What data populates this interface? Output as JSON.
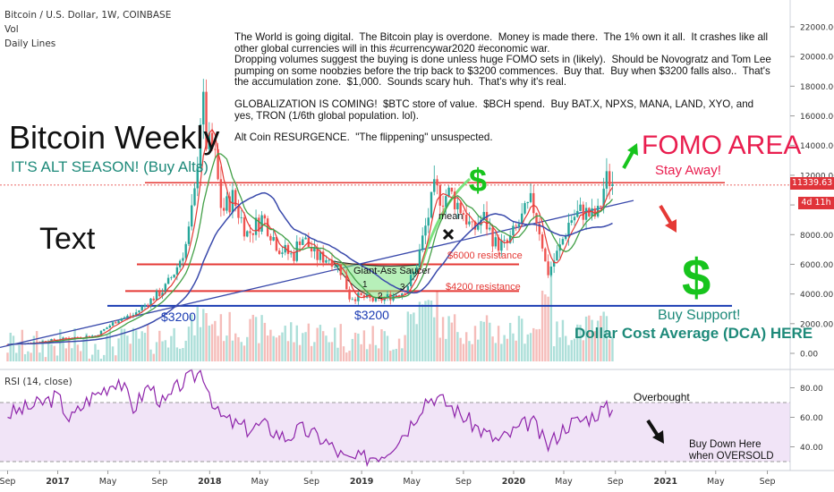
{
  "header": {
    "symbol": "Bitcoin / U.S. Dollar, 1W, COINBASE",
    "vol_label": "Vol",
    "daily_lines_label": "Daily Lines",
    "rsi_label": "RSI (14, close)"
  },
  "annotations": {
    "note_lines": [
      "The World is going digital.  The Bitcoin play is overdone.  Money is made there.  The 1% own it all.  It crashes like all other global currencies will in this #currencywar2020 #economic war.",
      "Dropping volumes suggest the buying is done unless huge FOMO sets in (likely).  Should be Novogratz and Tom Lee pumping on some noobzies before the trip back to $3200 commences.  Buy that.  Buy when $3200 falls also..  That's the accumulation zone.  $1,000.  Sounds scary huh.  That's why it's real.",
      "",
      "GLOBALIZATION IS COMING!  $BTC store of value.  $BCH spend.  Buy BAT.X, NPXS, MANA, LAND, XYO, and yes, TRON (1/6th global population. lol).",
      "",
      "Alt Coin RESURGENCE.  \"The flippening\" unsuspected."
    ],
    "bitcoin_weekly": "Bitcoin Weekly",
    "alt_season": "IT'S ALT SEASON! (Buy Alts)",
    "text_label": "Text",
    "fomo_area": "FOMO AREA",
    "stay_away": "Stay Away!",
    "buy_support": "Buy Support!",
    "dca": "Dollar Cost Average (DCA) HERE",
    "resistance_6000": "$6000 resistance",
    "resistance_4200": "$4200 resistance",
    "support_3200_left": "$3200",
    "support_3200_mid": "$3200",
    "giant_saucer": "Giant-Ass Saucer",
    "mean": "mean",
    "saucer_numbers": [
      "1",
      "2",
      "3"
    ],
    "dollar_sign": "$",
    "overbought": "Overbought",
    "buy_down": "Buy Down Here when OVERSOLD",
    "price_tag": "11339.63",
    "countdown_tag": "4d 11h",
    "colors": {
      "candle_up": "#26a69a",
      "candle_down": "#ef5350",
      "resistance": "#e53935",
      "support": "#1a3bb3",
      "fomo": "#e91e4f",
      "dca": "#1e8a7a",
      "dollar": "#17c41d",
      "rsi": "#8e24aa"
    }
  },
  "chart_data": [
    {
      "type": "candlestick",
      "interval": "weekly",
      "y_axis_ticks": [
        0,
        2000,
        4000,
        6000,
        8000,
        10000,
        12000,
        14000,
        16000,
        18000,
        20000,
        22000
      ],
      "x_axis_ticks": [
        "Sep",
        "2017",
        "May",
        "Sep",
        "2018",
        "May",
        "Sep",
        "2019",
        "May",
        "Sep",
        "2020",
        "May",
        "Sep",
        "2021",
        "May",
        "Sep"
      ],
      "last_price": 11339.63,
      "horizontal_lines": [
        {
          "label": "$6000 resistance",
          "value": 6000
        },
        {
          "label": "$4200 resistance",
          "value": 4200
        },
        {
          "label": "$3200",
          "value": 3200
        },
        {
          "label": "",
          "value": 11500
        }
      ],
      "price_points": [
        {
          "t": 2016.67,
          "v": 600
        },
        {
          "t": 2016.85,
          "v": 740
        },
        {
          "t": 2017.0,
          "v": 960
        },
        {
          "t": 2017.1,
          "v": 1050
        },
        {
          "t": 2017.25,
          "v": 1200
        },
        {
          "t": 2017.4,
          "v": 2300
        },
        {
          "t": 2017.5,
          "v": 2600
        },
        {
          "t": 2017.6,
          "v": 3500
        },
        {
          "t": 2017.7,
          "v": 4300
        },
        {
          "t": 2017.78,
          "v": 5700
        },
        {
          "t": 2017.85,
          "v": 7500
        },
        {
          "t": 2017.9,
          "v": 10500
        },
        {
          "t": 2017.95,
          "v": 17500
        },
        {
          "t": 2017.98,
          "v": 14000
        },
        {
          "t": 2018.03,
          "v": 13500
        },
        {
          "t": 2018.08,
          "v": 9500
        },
        {
          "t": 2018.15,
          "v": 10500
        },
        {
          "t": 2018.25,
          "v": 8000
        },
        {
          "t": 2018.35,
          "v": 9200
        },
        {
          "t": 2018.45,
          "v": 7200
        },
        {
          "t": 2018.55,
          "v": 6500
        },
        {
          "t": 2018.6,
          "v": 8000
        },
        {
          "t": 2018.7,
          "v": 6500
        },
        {
          "t": 2018.8,
          "v": 6400
        },
        {
          "t": 2018.87,
          "v": 5500
        },
        {
          "t": 2018.92,
          "v": 3800
        },
        {
          "t": 2019.0,
          "v": 3800
        },
        {
          "t": 2019.1,
          "v": 3500
        },
        {
          "t": 2019.2,
          "v": 3900
        },
        {
          "t": 2019.28,
          "v": 4200
        },
        {
          "t": 2019.35,
          "v": 5500
        },
        {
          "t": 2019.42,
          "v": 8500
        },
        {
          "t": 2019.48,
          "v": 11000
        },
        {
          "t": 2019.53,
          "v": 10500
        },
        {
          "t": 2019.58,
          "v": 10800
        },
        {
          "t": 2019.67,
          "v": 9500
        },
        {
          "t": 2019.73,
          "v": 8200
        },
        {
          "t": 2019.8,
          "v": 9200
        },
        {
          "t": 2019.88,
          "v": 7400
        },
        {
          "t": 2019.95,
          "v": 7200
        },
        {
          "t": 2020.05,
          "v": 9000
        },
        {
          "t": 2020.12,
          "v": 10200
        },
        {
          "t": 2020.18,
          "v": 8000
        },
        {
          "t": 2020.22,
          "v": 5300
        },
        {
          "t": 2020.3,
          "v": 7000
        },
        {
          "t": 2020.37,
          "v": 9000
        },
        {
          "t": 2020.45,
          "v": 9600
        },
        {
          "t": 2020.52,
          "v": 9200
        },
        {
          "t": 2020.56,
          "v": 9400
        },
        {
          "t": 2020.6,
          "v": 11500
        },
        {
          "t": 2020.63,
          "v": 11800
        },
        {
          "t": 2020.66,
          "v": 11339.63
        }
      ]
    },
    {
      "type": "line",
      "name": "RSI (14, close)",
      "y_axis_ticks": [
        40,
        60,
        80
      ],
      "bands": [
        30,
        70
      ],
      "points": [
        {
          "t": 2016.67,
          "v": 62
        },
        {
          "t": 2016.85,
          "v": 68
        },
        {
          "t": 2017.0,
          "v": 74
        },
        {
          "t": 2017.08,
          "v": 58
        },
        {
          "t": 2017.2,
          "v": 72
        },
        {
          "t": 2017.4,
          "v": 86
        },
        {
          "t": 2017.5,
          "v": 66
        },
        {
          "t": 2017.6,
          "v": 82
        },
        {
          "t": 2017.7,
          "v": 68
        },
        {
          "t": 2017.8,
          "v": 82
        },
        {
          "t": 2017.9,
          "v": 88
        },
        {
          "t": 2017.95,
          "v": 92
        },
        {
          "t": 2018.05,
          "v": 62
        },
        {
          "t": 2018.15,
          "v": 56
        },
        {
          "t": 2018.25,
          "v": 52
        },
        {
          "t": 2018.35,
          "v": 55
        },
        {
          "t": 2018.5,
          "v": 46
        },
        {
          "t": 2018.6,
          "v": 52
        },
        {
          "t": 2018.75,
          "v": 45
        },
        {
          "t": 2018.9,
          "v": 31
        },
        {
          "t": 2019.0,
          "v": 32
        },
        {
          "t": 2019.15,
          "v": 36
        },
        {
          "t": 2019.3,
          "v": 52
        },
        {
          "t": 2019.42,
          "v": 72
        },
        {
          "t": 2019.48,
          "v": 74
        },
        {
          "t": 2019.58,
          "v": 68
        },
        {
          "t": 2019.7,
          "v": 58
        },
        {
          "t": 2019.8,
          "v": 50
        },
        {
          "t": 2019.9,
          "v": 44
        },
        {
          "t": 2020.0,
          "v": 50
        },
        {
          "t": 2020.12,
          "v": 58
        },
        {
          "t": 2020.22,
          "v": 40
        },
        {
          "t": 2020.35,
          "v": 55
        },
        {
          "t": 2020.5,
          "v": 60
        },
        {
          "t": 2020.6,
          "v": 66
        },
        {
          "t": 2020.66,
          "v": 64
        }
      ]
    }
  ]
}
